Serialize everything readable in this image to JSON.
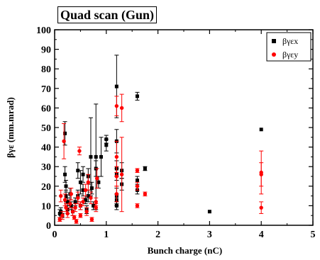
{
  "chart_data": {
    "type": "scatter",
    "title": "Quad scan (Gun)",
    "xlabel": "Bunch charge (nC)",
    "ylabel": "βγε (mm.mrad)",
    "xlim": [
      0,
      5
    ],
    "ylim": [
      0,
      100
    ],
    "xticks": [
      0,
      1,
      2,
      3,
      4,
      5
    ],
    "yticks": [
      0,
      10,
      20,
      30,
      40,
      50,
      60,
      70,
      80,
      90,
      100
    ],
    "grid": false,
    "legend_position": "top-right",
    "series": [
      {
        "name": "βγεx",
        "color": "#000000",
        "marker": "square",
        "points": [
          {
            "x": 0.1,
            "y": 6,
            "err": 2
          },
          {
            "x": 0.12,
            "y": 7,
            "err": 2
          },
          {
            "x": 0.15,
            "y": 5,
            "err": 1
          },
          {
            "x": 0.2,
            "y": 47,
            "err": 6
          },
          {
            "x": 0.2,
            "y": 26,
            "err": 4
          },
          {
            "x": 0.22,
            "y": 20,
            "err": 3
          },
          {
            "x": 0.22,
            "y": 15,
            "err": 3
          },
          {
            "x": 0.25,
            "y": 12,
            "err": 2
          },
          {
            "x": 0.25,
            "y": 8,
            "err": 2
          },
          {
            "x": 0.3,
            "y": 16,
            "err": 3
          },
          {
            "x": 0.32,
            "y": 10,
            "err": 2
          },
          {
            "x": 0.35,
            "y": 7,
            "err": 2
          },
          {
            "x": 0.4,
            "y": 12,
            "err": 2
          },
          {
            "x": 0.45,
            "y": 28,
            "err": 4
          },
          {
            "x": 0.45,
            "y": 15,
            "err": 3
          },
          {
            "x": 0.5,
            "y": 22,
            "err": 6
          },
          {
            "x": 0.5,
            "y": 10,
            "err": 2
          },
          {
            "x": 0.55,
            "y": 26,
            "err": 4
          },
          {
            "x": 0.55,
            "y": 18,
            "err": 3
          },
          {
            "x": 0.6,
            "y": 13,
            "err": 2
          },
          {
            "x": 0.62,
            "y": 8,
            "err": 2
          },
          {
            "x": 0.65,
            "y": 25,
            "err": 4
          },
          {
            "x": 0.65,
            "y": 15,
            "err": 3
          },
          {
            "x": 0.7,
            "y": 35,
            "err": 20
          },
          {
            "x": 0.72,
            "y": 19,
            "err": 3
          },
          {
            "x": 0.75,
            "y": 10,
            "err": 2
          },
          {
            "x": 0.8,
            "y": 35,
            "err": 27
          },
          {
            "x": 0.8,
            "y": 29,
            "err": 4
          },
          {
            "x": 0.85,
            "y": 22,
            "err": 3
          },
          {
            "x": 0.9,
            "y": 35,
            "err": 10
          },
          {
            "x": 1.0,
            "y": 41,
            "err": 3
          },
          {
            "x": 1.0,
            "y": 44,
            "err": 2
          },
          {
            "x": 1.2,
            "y": 71,
            "err": 16
          },
          {
            "x": 1.2,
            "y": 43,
            "err": 6
          },
          {
            "x": 1.2,
            "y": 29,
            "err": 4
          },
          {
            "x": 1.2,
            "y": 26,
            "err": 3
          },
          {
            "x": 1.2,
            "y": 15,
            "err": 4
          },
          {
            "x": 1.2,
            "y": 13,
            "err": 3
          },
          {
            "x": 1.2,
            "y": 10,
            "err": 2
          },
          {
            "x": 1.3,
            "y": 28,
            "err": 4
          },
          {
            "x": 1.3,
            "y": 21,
            "err": 3
          },
          {
            "x": 1.6,
            "y": 66,
            "err": 2
          },
          {
            "x": 1.6,
            "y": 23,
            "err": 2
          },
          {
            "x": 1.6,
            "y": 18,
            "err": 2
          },
          {
            "x": 1.75,
            "y": 29,
            "err": 1
          },
          {
            "x": 3.0,
            "y": 7,
            "err": 0
          },
          {
            "x": 4.0,
            "y": 49,
            "err": 0
          }
        ]
      },
      {
        "name": "βγεy",
        "color": "#ff0000",
        "marker": "circle",
        "points": [
          {
            "x": 0.1,
            "y": 3,
            "err": 1
          },
          {
            "x": 0.12,
            "y": 15,
            "err": 3
          },
          {
            "x": 0.15,
            "y": 5,
            "err": 2
          },
          {
            "x": 0.18,
            "y": 43,
            "err": 9
          },
          {
            "x": 0.2,
            "y": 13,
            "err": 3
          },
          {
            "x": 0.22,
            "y": 9,
            "err": 2
          },
          {
            "x": 0.25,
            "y": 6,
            "err": 2
          },
          {
            "x": 0.3,
            "y": 11,
            "err": 2
          },
          {
            "x": 0.32,
            "y": 16,
            "err": 3
          },
          {
            "x": 0.35,
            "y": 7,
            "err": 2
          },
          {
            "x": 0.38,
            "y": 4,
            "err": 1
          },
          {
            "x": 0.4,
            "y": 9,
            "err": 2
          },
          {
            "x": 0.42,
            "y": 2,
            "err": 1
          },
          {
            "x": 0.45,
            "y": 14,
            "err": 3
          },
          {
            "x": 0.48,
            "y": 38,
            "err": 2
          },
          {
            "x": 0.5,
            "y": 5,
            "err": 1
          },
          {
            "x": 0.5,
            "y": 10,
            "err": 2
          },
          {
            "x": 0.55,
            "y": 12,
            "err": 2
          },
          {
            "x": 0.6,
            "y": 18,
            "err": 3
          },
          {
            "x": 0.62,
            "y": 7,
            "err": 2
          },
          {
            "x": 0.65,
            "y": 22,
            "err": 4
          },
          {
            "x": 0.7,
            "y": 14,
            "err": 3
          },
          {
            "x": 0.72,
            "y": 3,
            "err": 1
          },
          {
            "x": 0.8,
            "y": 9,
            "err": 2
          },
          {
            "x": 0.8,
            "y": 12,
            "err": 2
          },
          {
            "x": 0.82,
            "y": 24,
            "err": 5
          },
          {
            "x": 1.2,
            "y": 61,
            "err": 5
          },
          {
            "x": 1.2,
            "y": 35,
            "err": 8
          },
          {
            "x": 1.2,
            "y": 25,
            "err": 5
          },
          {
            "x": 1.2,
            "y": 16,
            "err": 4
          },
          {
            "x": 1.3,
            "y": 60,
            "err": 7
          },
          {
            "x": 1.3,
            "y": 26,
            "err": 19
          },
          {
            "x": 1.6,
            "y": 28,
            "err": 1
          },
          {
            "x": 1.6,
            "y": 20,
            "err": 2
          },
          {
            "x": 1.6,
            "y": 10,
            "err": 1
          },
          {
            "x": 1.75,
            "y": 16,
            "err": 1
          },
          {
            "x": 4.0,
            "y": 27,
            "err": 11
          },
          {
            "x": 4.0,
            "y": 26,
            "err": 6
          },
          {
            "x": 4.0,
            "y": 9,
            "err": 3
          }
        ]
      }
    ]
  }
}
